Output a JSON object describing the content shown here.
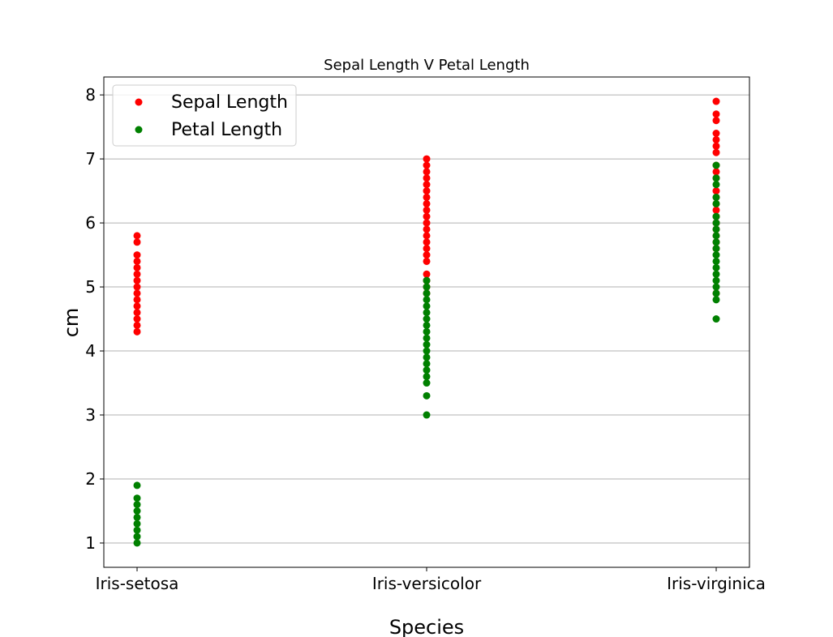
{
  "chart_data": {
    "type": "scatter",
    "title": "Sepal Length V Petal Length",
    "xlabel": "Species",
    "ylabel": "cm",
    "categories": [
      "Iris-setosa",
      "Iris-versicolor",
      "Iris-virginica"
    ],
    "yticks": [
      "1",
      "2",
      "3",
      "4",
      "5",
      "6",
      "7",
      "8"
    ],
    "ylim": [
      0.62,
      8.28
    ],
    "grid": "horizontal",
    "legend_position": "top-left",
    "series": [
      {
        "name": "Sepal Length",
        "color": "#ff0000",
        "points": [
          {
            "category": "Iris-setosa",
            "values": [
              4.3,
              4.4,
              4.5,
              4.6,
              4.7,
              4.8,
              4.9,
              5.0,
              5.1,
              5.2,
              5.3,
              5.4,
              5.5,
              5.7,
              5.8
            ]
          },
          {
            "category": "Iris-versicolor",
            "values": [
              4.9,
              5.0,
              5.1,
              5.2,
              5.4,
              5.5,
              5.6,
              5.7,
              5.8,
              5.9,
              6.0,
              6.1,
              6.2,
              6.3,
              6.4,
              6.5,
              6.6,
              6.7,
              6.8,
              6.9,
              7.0
            ]
          },
          {
            "category": "Iris-virginica",
            "values": [
              4.9,
              5.6,
              5.7,
              5.8,
              5.9,
              6.0,
              6.1,
              6.2,
              6.3,
              6.4,
              6.5,
              6.7,
              6.8,
              6.9,
              7.1,
              7.2,
              7.3,
              7.4,
              7.6,
              7.7,
              7.9
            ]
          }
        ]
      },
      {
        "name": "Petal Length",
        "color": "#008000",
        "points": [
          {
            "category": "Iris-setosa",
            "values": [
              1.0,
              1.1,
              1.2,
              1.3,
              1.4,
              1.5,
              1.6,
              1.7,
              1.9
            ]
          },
          {
            "category": "Iris-versicolor",
            "values": [
              3.0,
              3.3,
              3.5,
              3.6,
              3.7,
              3.8,
              3.9,
              4.0,
              4.1,
              4.2,
              4.3,
              4.4,
              4.5,
              4.6,
              4.7,
              4.8,
              4.9,
              5.0,
              5.1
            ]
          },
          {
            "category": "Iris-virginica",
            "values": [
              4.5,
              4.8,
              4.9,
              5.0,
              5.1,
              5.2,
              5.3,
              5.4,
              5.5,
              5.6,
              5.7,
              5.8,
              5.9,
              6.0,
              6.1,
              6.3,
              6.4,
              6.6,
              6.7,
              6.9
            ]
          }
        ]
      }
    ]
  }
}
